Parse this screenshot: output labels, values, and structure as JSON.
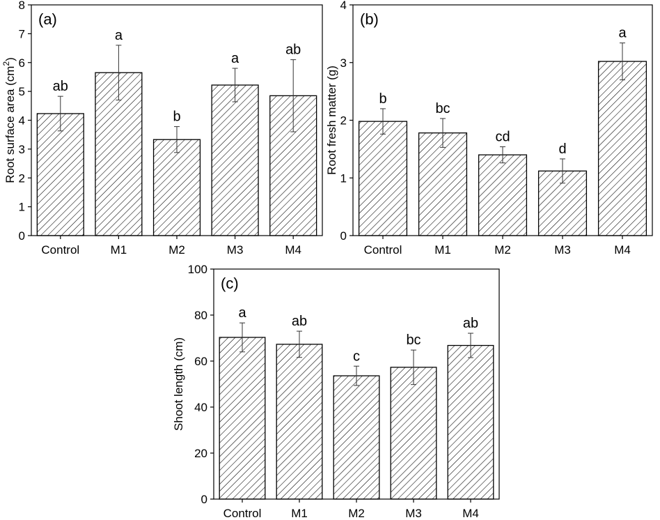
{
  "chart_data": [
    {
      "type": "bar",
      "panel_label": "(a)",
      "categories": [
        "Control",
        "M1",
        "M2",
        "M3",
        "M4"
      ],
      "values": [
        4.23,
        5.65,
        3.33,
        5.22,
        4.85
      ],
      "errors": [
        0.6,
        0.95,
        0.45,
        0.58,
        1.25
      ],
      "significance": [
        "ab",
        "a",
        "b",
        "a",
        "ab"
      ],
      "ylabel": "Root surface area (cm",
      "ylabel_superscript": "2",
      "ylabel_suffix": ")",
      "ylim": [
        0,
        8
      ],
      "yticks": [
        "0",
        "1",
        "2",
        "3",
        "4",
        "5",
        "6",
        "7",
        "8"
      ],
      "xlabel": ""
    },
    {
      "type": "bar",
      "panel_label": "(b)",
      "categories": [
        "Control",
        "M1",
        "M2",
        "M3",
        "M4"
      ],
      "values": [
        1.98,
        1.78,
        1.4,
        1.12,
        3.02
      ],
      "errors": [
        0.22,
        0.25,
        0.14,
        0.21,
        0.32
      ],
      "significance": [
        "b",
        "bc",
        "cd",
        "d",
        "a"
      ],
      "ylabel": "Root fresh matter (g)",
      "ylim": [
        0,
        4
      ],
      "yticks": [
        "0",
        "1",
        "2",
        "3",
        "4"
      ],
      "xlabel": ""
    },
    {
      "type": "bar",
      "panel_label": "(c)",
      "categories": [
        "Control",
        "M1",
        "M2",
        "M3",
        "M4"
      ],
      "values": [
        70.3,
        67.3,
        53.6,
        57.3,
        66.8
      ],
      "errors": [
        6.3,
        5.7,
        4.2,
        7.5,
        5.3
      ],
      "significance": [
        "a",
        "ab",
        "c",
        "bc",
        "ab"
      ],
      "ylabel": "Shoot length (cm)",
      "ylim": [
        0,
        100
      ],
      "yticks": [
        "0",
        "20",
        "40",
        "60",
        "80",
        "100"
      ],
      "xlabel": ""
    }
  ]
}
